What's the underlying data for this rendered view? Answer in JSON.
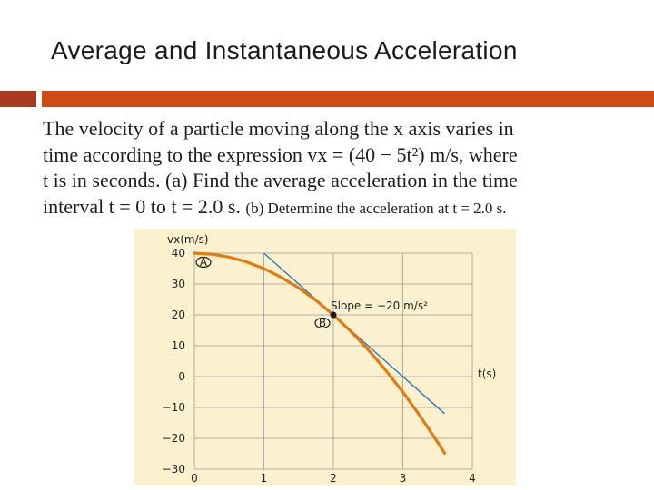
{
  "slide": {
    "title": "Average and Instantaneous Acceleration",
    "problem": {
      "line1": "The velocity of a particle moving along the x axis varies in",
      "line2": "time according to the expression vx = (40 − 5t²) m/s, where",
      "line3": "t is in seconds. (a) Find the average acceleration in the time",
      "line4a": "interval t = 0 to t = 2.0 s.",
      "line4b": "(b) Determine the acceleration at t = 2.0 s."
    }
  },
  "colors": {
    "bar_dark": "#a83a1f",
    "bar_main": "#cf4a16",
    "chart_background": "#fbf1cf",
    "curve": "#e07b12",
    "tangent": "#2d7ab8",
    "grid": "#9a9a9a"
  },
  "chart_data": {
    "type": "line",
    "title": "",
    "xlabel": "t(s)",
    "ylabel": "vx(m/s)",
    "xlim": [
      0,
      4
    ],
    "ylim": [
      -30,
      40
    ],
    "x_ticks": [
      "0",
      "1",
      "2",
      "3",
      "4"
    ],
    "y_ticks": [
      "40",
      "30",
      "20",
      "10",
      "0",
      "−10",
      "−20",
      "−30"
    ],
    "grid": true,
    "series": [
      {
        "x": [
          0,
          0.25,
          0.5,
          0.75,
          1.0,
          1.25,
          1.5,
          1.75,
          2.0,
          2.25,
          2.5,
          2.75,
          3.0,
          3.25,
          3.5,
          3.6
        ],
        "values": [
          40,
          39.69,
          38.75,
          37.19,
          35,
          32.19,
          28.75,
          24.69,
          20,
          14.69,
          8.75,
          2.19,
          -5,
          -12.81,
          -21.25,
          -24.8
        ]
      }
    ],
    "tangent": {
      "x": [
        1.0,
        3.6
      ],
      "values": [
        40,
        -12
      ]
    },
    "points": [
      {
        "label": "A",
        "x": 0,
        "y": 40
      },
      {
        "label": "B",
        "x": 2,
        "y": 20
      }
    ],
    "annotation": "Slope = −20 m/s²"
  }
}
